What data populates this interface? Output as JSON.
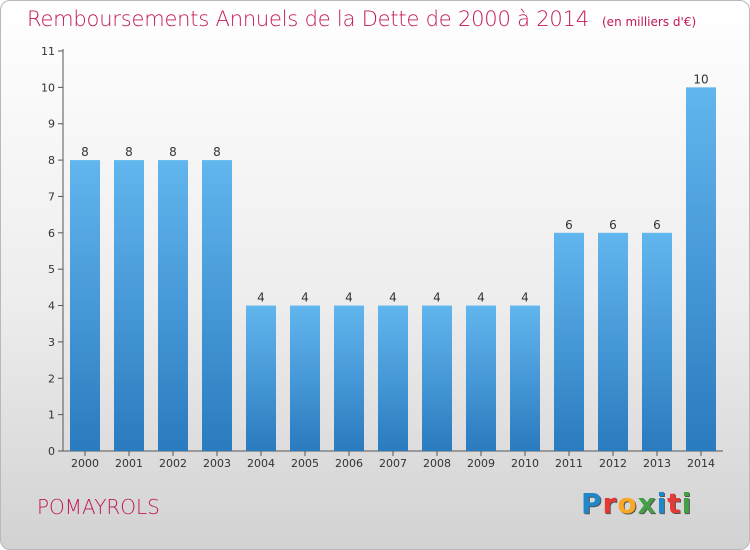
{
  "title": "Remboursements Annuels de la Dette de 2000 à 2014",
  "unit_note": "(en milliers d'€)",
  "town": "POMAYROLS",
  "logo": {
    "text": "Proxiti",
    "colors": [
      "#1e88c8",
      "#e53935",
      "#f9a825",
      "#43a047",
      "#1e88c8",
      "#e53935",
      "#43a047"
    ]
  },
  "colors": {
    "bar_top": "#62b6ee",
    "bar_bottom": "#2a7bbf",
    "title": "#c2185b"
  },
  "chart_data": {
    "type": "bar",
    "title": "Remboursements Annuels de la Dette de 2000 à 2014",
    "ylabel": "(en milliers d'€)",
    "xlabel": "",
    "categories": [
      "2000",
      "2001",
      "2002",
      "2003",
      "2004",
      "2005",
      "2006",
      "2007",
      "2008",
      "2009",
      "2010",
      "2011",
      "2012",
      "2013",
      "2014"
    ],
    "values": [
      8,
      8,
      8,
      8,
      4,
      4,
      4,
      4,
      4,
      4,
      4,
      6,
      6,
      6,
      10
    ],
    "labels": [
      "8",
      "8",
      "8",
      "8",
      "4",
      "4",
      "4",
      "4",
      "4",
      "4",
      "4",
      "6",
      "6",
      "6",
      "10"
    ],
    "ylim": [
      0,
      11
    ],
    "yticks": [
      "0",
      "1",
      "2",
      "3",
      "4",
      "5",
      "6",
      "7",
      "8",
      "9",
      "10",
      "11"
    ],
    "grid": false,
    "legend": "none"
  }
}
